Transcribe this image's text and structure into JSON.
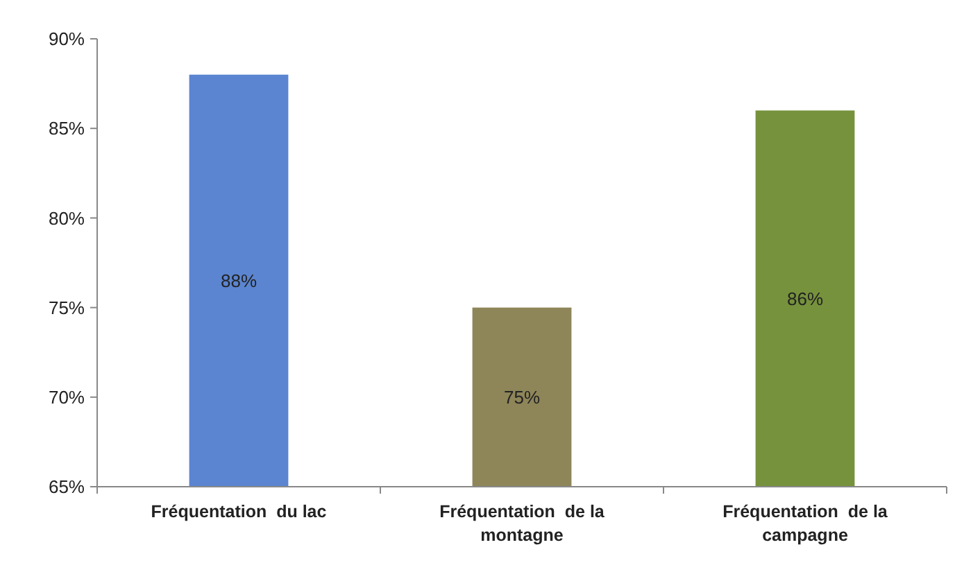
{
  "chart_data": {
    "type": "bar",
    "categories": [
      "Fréquentation  du lac",
      "Fréquentation  de la montagne",
      "Fréquentation  de la campagne"
    ],
    "values": [
      88,
      75,
      86
    ],
    "colors": [
      "#5b85d1",
      "#8e8559",
      "#76923c"
    ],
    "value_labels": [
      "88%",
      "75%",
      "86%"
    ],
    "ylim": [
      65,
      90
    ],
    "yticks": [
      {
        "value": 65,
        "label": "65%"
      },
      {
        "value": 70,
        "label": "70%"
      },
      {
        "value": 75,
        "label": "75%"
      },
      {
        "value": 80,
        "label": "80%"
      },
      {
        "value": 85,
        "label": "85%"
      },
      {
        "value": 90,
        "label": "90%"
      }
    ],
    "grid": false
  }
}
